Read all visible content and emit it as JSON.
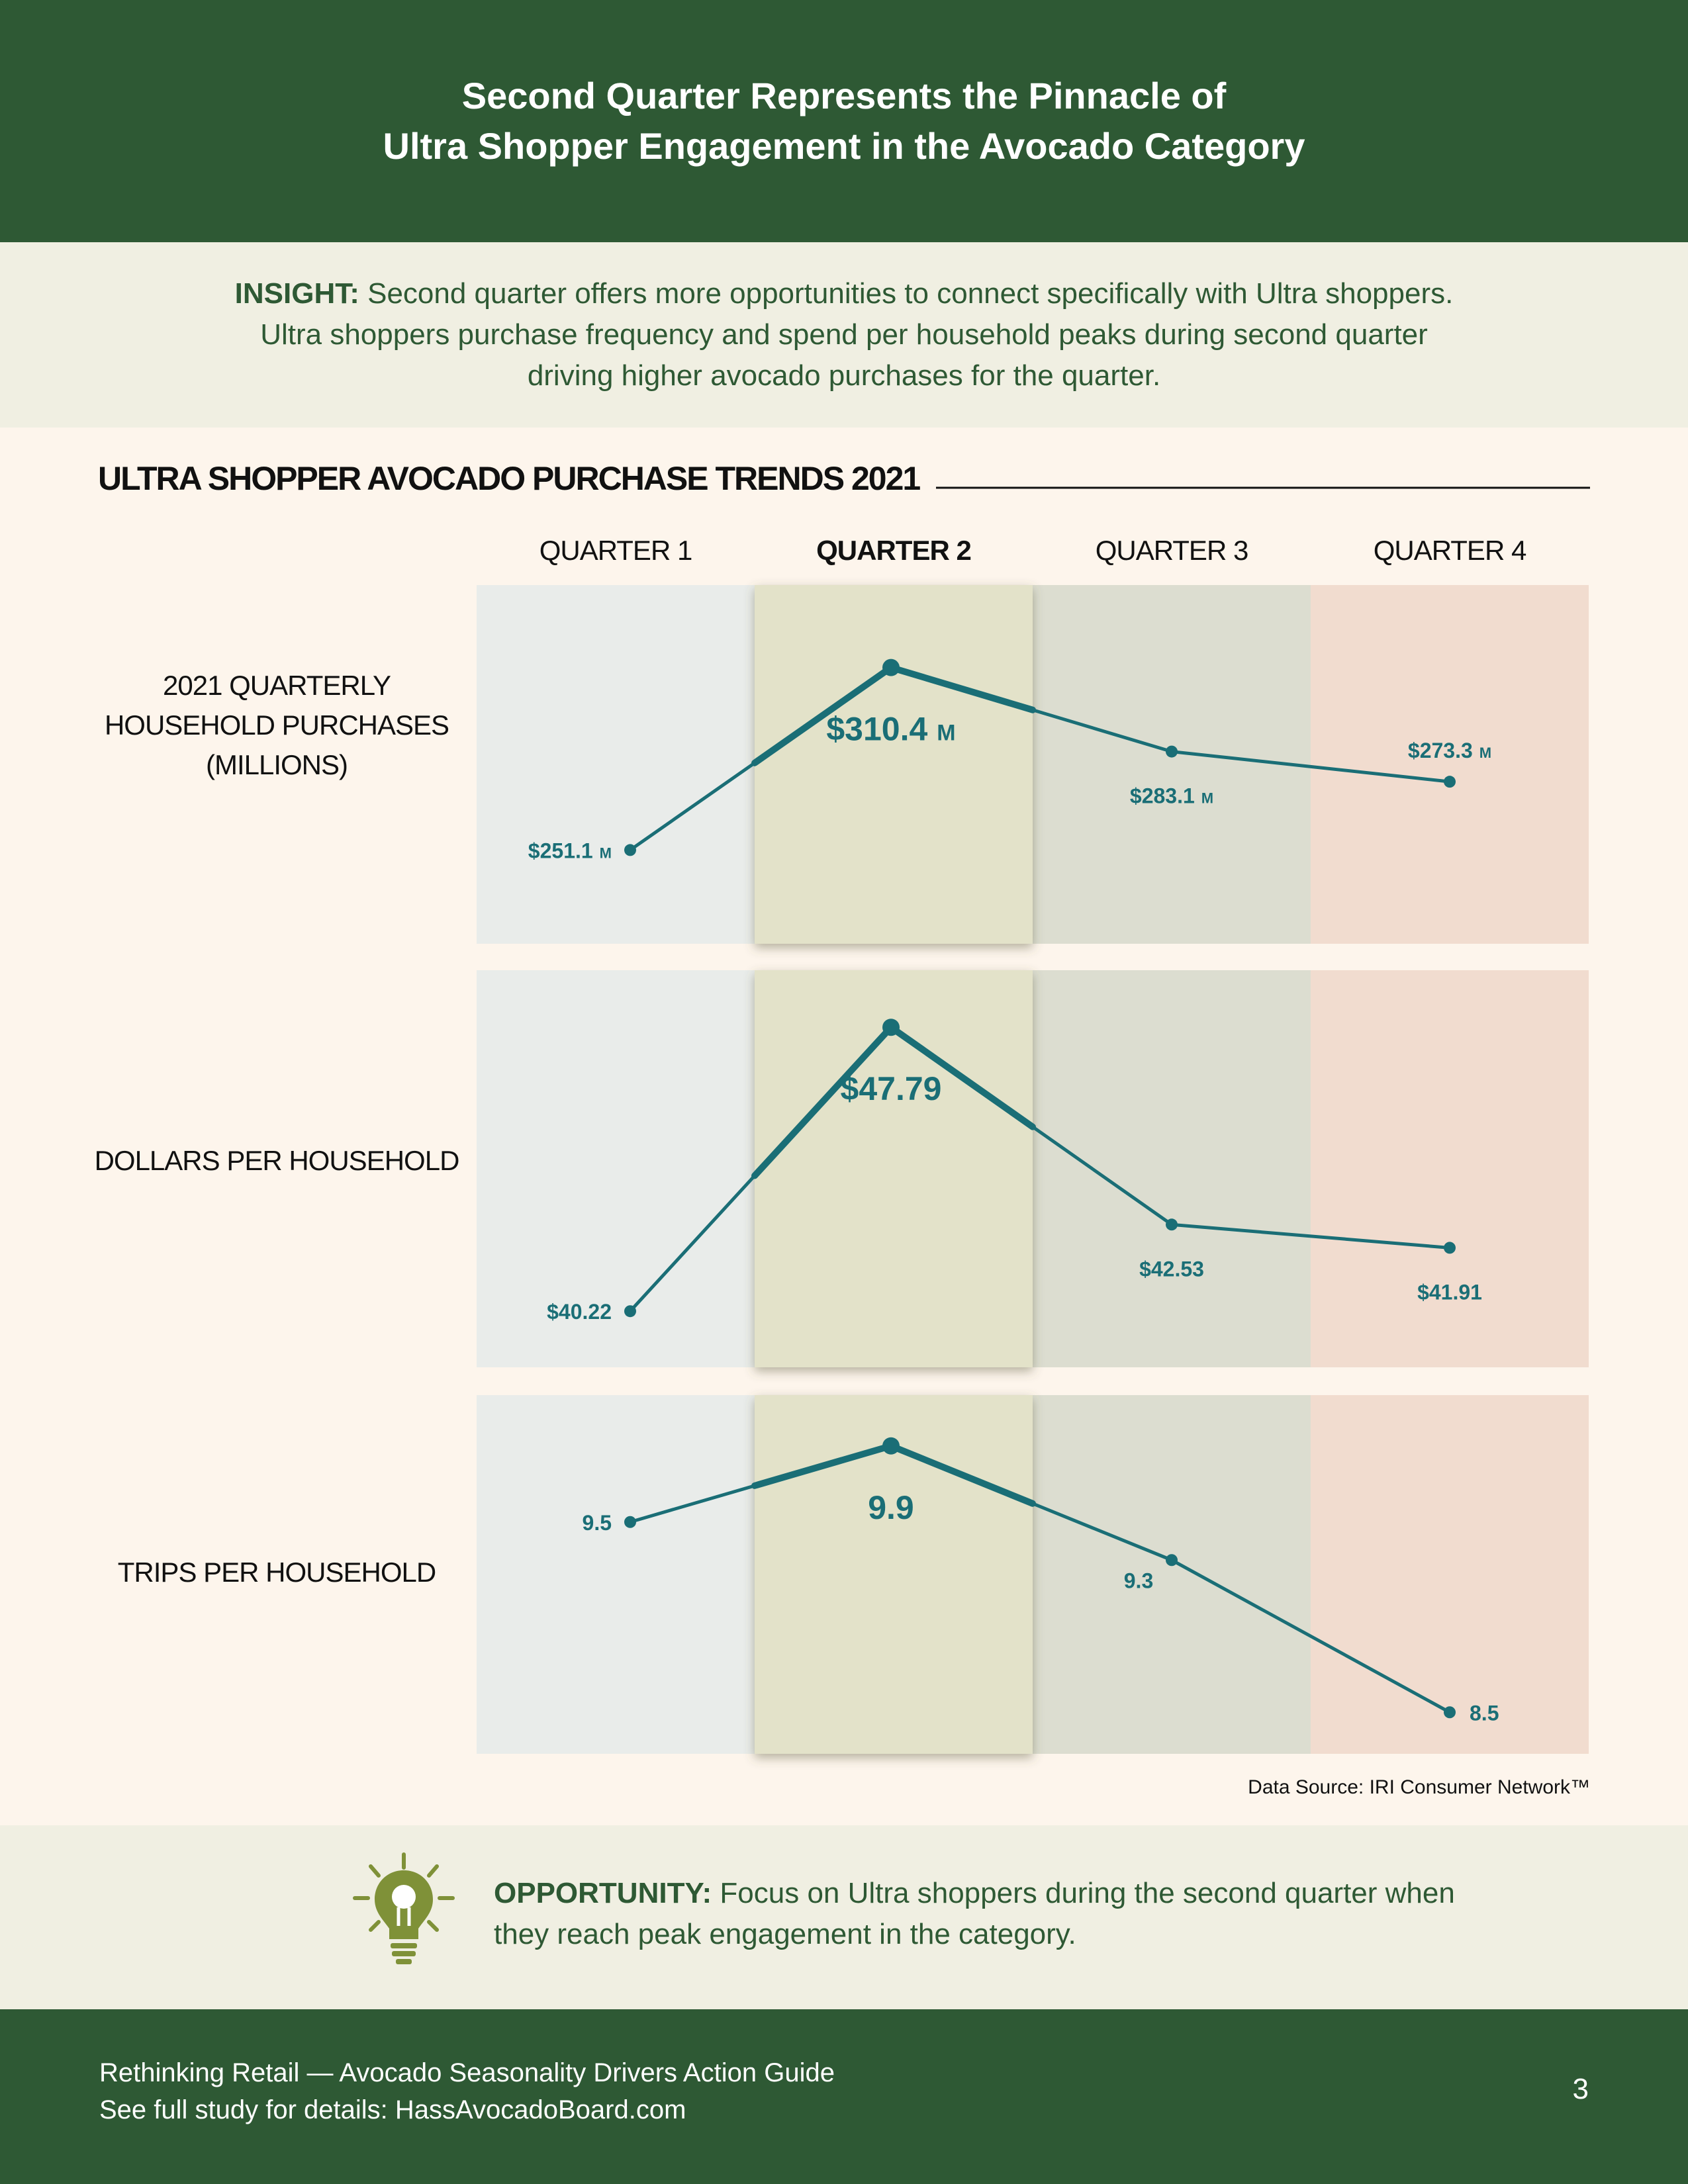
{
  "header": {
    "title_line1": "Second Quarter Represents the Pinnacle of",
    "title_line2": "Ultra Shopper Engagement in the Avocado Category"
  },
  "insight": {
    "lead": "INSIGHT:",
    "text": " Second quarter offers more opportunities to connect specifically with Ultra shoppers. Ultra shoppers purchase frequency and spend per household peaks during second quarter driving higher avocado purchases for the quarter."
  },
  "chart_data": {
    "type": "line",
    "title": "ULTRA SHOPPER AVOCADO PURCHASE TRENDS 2021",
    "categories": [
      "QUARTER 1",
      "QUARTER 2",
      "QUARTER 3",
      "QUARTER 4"
    ],
    "highlight_category": "QUARTER 2",
    "panels": [
      {
        "label_lines": [
          "2021 QUARTERLY",
          "HOUSEHOLD PURCHASES",
          "(MILLIONS)"
        ],
        "values": [
          251.1,
          310.4,
          283.1,
          273.3
        ],
        "value_labels": [
          "$251.1",
          "$310.4",
          "$283.1",
          "$273.3"
        ],
        "unit_suffix": "M",
        "ylim": [
          240,
          320
        ]
      },
      {
        "label_lines": [
          "DOLLARS PER HOUSEHOLD"
        ],
        "values": [
          40.22,
          47.79,
          42.53,
          41.91
        ],
        "value_labels": [
          "$40.22",
          "$47.79",
          "$42.53",
          "$41.91"
        ],
        "unit_suffix": "",
        "ylim": [
          39.5,
          48.5
        ]
      },
      {
        "label_lines": [
          "TRIPS PER HOUSEHOLD"
        ],
        "values": [
          9.5,
          9.9,
          9.3,
          8.5
        ],
        "value_labels": [
          "9.5",
          "9.9",
          "9.3",
          "8.5"
        ],
        "unit_suffix": "",
        "ylim": [
          8.4,
          10.0
        ]
      }
    ],
    "source": "Data Source: IRI Consumer Network™",
    "colors": {
      "line": "#1a6e76",
      "title_text": "#111111",
      "band_q1": "#e9ecea",
      "band_q2": "#e3e2c9",
      "band_q3": "#dcddd0",
      "band_q4": "#f1dccf"
    },
    "grid": false,
    "legend": "none"
  },
  "opportunity": {
    "icon": "lightbulb-icon",
    "lead": "OPPORTUNITY:",
    "text": " Focus on Ultra shoppers during the second quarter when they reach peak engagement in the category."
  },
  "footer": {
    "line1": "Rethinking Retail — Avocado Seasonality Drivers Action Guide",
    "line2": "See full study for details: HassAvocadoBoard.com",
    "page_number": "3"
  },
  "theme": {
    "brand_green": "#2e5934",
    "panel_bg": "#f0efe2",
    "page_bg": "#fdf5ec",
    "bulb_olive": "#7f9138"
  }
}
